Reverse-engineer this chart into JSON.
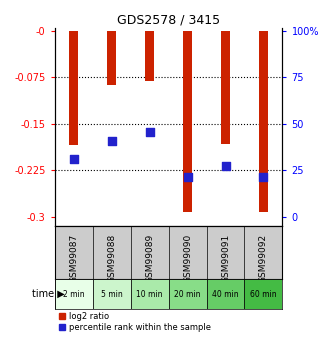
{
  "title": "GDS2578 / 3415",
  "samples": [
    "GSM99087",
    "GSM99088",
    "GSM99089",
    "GSM99090",
    "GSM99091",
    "GSM99092"
  ],
  "time_labels": [
    "2 min",
    "5 min",
    "10 min",
    "20 min",
    "40 min",
    "60 min"
  ],
  "log2_values": [
    -0.185,
    -0.088,
    -0.082,
    -0.292,
    -0.183,
    -0.293
  ],
  "percentile_values": [
    -0.207,
    -0.178,
    -0.163,
    -0.237,
    -0.218,
    -0.237
  ],
  "left_yticks": [
    0,
    -0.075,
    -0.15,
    -0.225,
    -0.3
  ],
  "left_yticklabels": [
    "-0",
    "-0.075",
    "-0.15",
    "-0.225",
    "-0.3"
  ],
  "right_yticklabels": [
    "100%",
    "75",
    "50",
    "25",
    "0"
  ],
  "ylim": [
    -0.315,
    0.005
  ],
  "bar_color": "#cc2200",
  "dot_color": "#2222cc",
  "xlabel_bg": "#cccccc",
  "time_bg_colors": [
    "#e8ffe8",
    "#ccf5cc",
    "#aaeaaa",
    "#88dd88",
    "#66cc66",
    "#44bb44"
  ],
  "legend_bar_label": "log2 ratio",
  "legend_dot_label": "percentile rank within the sample",
  "bar_width": 0.25,
  "dot_size": 30,
  "plot_bg": "#ffffff",
  "grid_color": "#000000",
  "grid_style": ":",
  "grid_lw": 0.8
}
